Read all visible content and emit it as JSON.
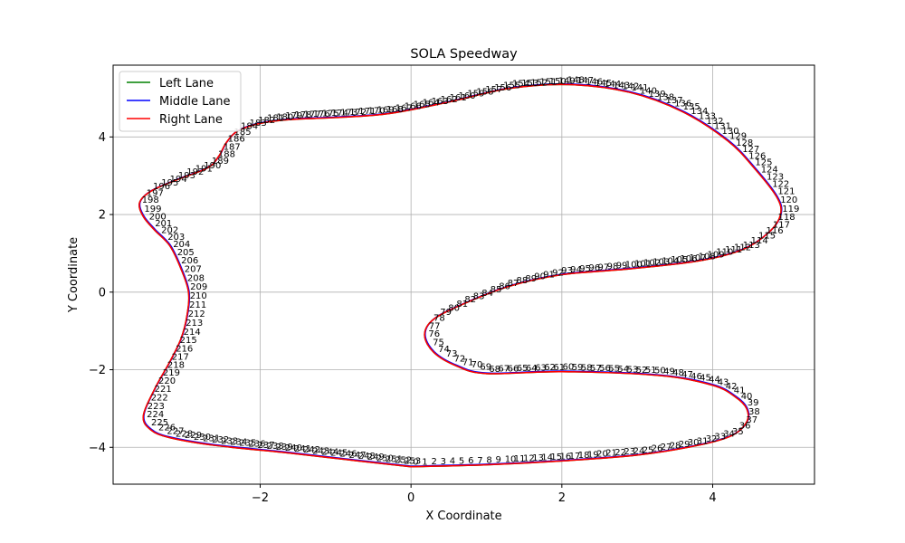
{
  "chart_data": {
    "type": "line",
    "title": "SOLA Speedway",
    "xlabel": "X Coordinate",
    "ylabel": "Y Coordinate",
    "xlim": [
      -3.95,
      5.35
    ],
    "ylim": [
      -4.95,
      5.85
    ],
    "xticks": [
      -2,
      0,
      2,
      4
    ],
    "xtick_labels": [
      "−2",
      "0",
      "2",
      "4"
    ],
    "yticks": [
      -4,
      -2,
      0,
      2,
      4
    ],
    "ytick_labels": [
      "−4",
      "−2",
      "0",
      "2",
      "4"
    ],
    "grid": true,
    "legend": {
      "position": "top-left"
    },
    "colors": {
      "Left Lane": "#008000",
      "Middle Lane": "#0000ff",
      "Right Lane": "#ff0000"
    },
    "series": [
      {
        "name": "Left Lane",
        "x": [
          0.0,
          1.0,
          2.0,
          3.0,
          3.8,
          4.25,
          4.45,
          4.45,
          4.3,
          4.0,
          3.3,
          2.0,
          1.0,
          0.6,
          0.3,
          0.18,
          0.3,
          0.7,
          1.3,
          2.0,
          2.9,
          3.8,
          4.4,
          4.75,
          4.9,
          4.85,
          4.55,
          4.2,
          3.6,
          2.9,
          2.1,
          1.3,
          0.5,
          -0.3,
          -1.0,
          -1.6,
          -2.0,
          -2.3,
          -2.45,
          -2.55,
          -2.7,
          -3.1,
          -3.45,
          -3.6,
          -3.55,
          -3.4,
          -3.2,
          -3.05,
          -2.95,
          -2.97,
          -3.05,
          -3.2,
          -3.4,
          -3.55,
          -3.45,
          -3.2,
          -2.6,
          -1.6,
          -0.7,
          0.0
        ],
        "y": [
          -4.5,
          -4.45,
          -4.35,
          -4.2,
          -3.95,
          -3.7,
          -3.35,
          -3.0,
          -2.7,
          -2.4,
          -2.15,
          -2.05,
          -2.1,
          -1.9,
          -1.55,
          -1.1,
          -0.7,
          -0.3,
          0.15,
          0.45,
          0.6,
          0.8,
          1.1,
          1.55,
          2.0,
          2.45,
          3.2,
          3.9,
          4.65,
          5.15,
          5.35,
          5.25,
          4.9,
          4.6,
          4.5,
          4.45,
          4.35,
          4.15,
          3.85,
          3.5,
          3.2,
          2.9,
          2.6,
          2.3,
          1.95,
          1.6,
          1.2,
          0.6,
          0.0,
          -0.6,
          -1.2,
          -1.8,
          -2.5,
          -3.2,
          -3.55,
          -3.75,
          -3.95,
          -4.15,
          -4.35,
          -4.5
        ]
      },
      {
        "name": "Middle Lane",
        "x": [
          0.0,
          1.0,
          2.0,
          3.0,
          3.8,
          4.25,
          4.45,
          4.45,
          4.3,
          4.0,
          3.3,
          2.0,
          1.0,
          0.6,
          0.3,
          0.18,
          0.3,
          0.7,
          1.3,
          2.0,
          2.9,
          3.8,
          4.4,
          4.75,
          4.9,
          4.85,
          4.55,
          4.2,
          3.6,
          2.9,
          2.1,
          1.3,
          0.5,
          -0.3,
          -1.0,
          -1.6,
          -2.0,
          -2.3,
          -2.45,
          -2.55,
          -2.7,
          -3.1,
          -3.45,
          -3.6,
          -3.55,
          -3.4,
          -3.2,
          -3.05,
          -2.95,
          -2.97,
          -3.05,
          -3.2,
          -3.4,
          -3.55,
          -3.45,
          -3.2,
          -2.6,
          -1.6,
          -0.7,
          0.0
        ],
        "y": [
          -4.5,
          -4.45,
          -4.35,
          -4.2,
          -3.95,
          -3.7,
          -3.35,
          -3.0,
          -2.7,
          -2.4,
          -2.15,
          -2.05,
          -2.1,
          -1.9,
          -1.55,
          -1.1,
          -0.7,
          -0.3,
          0.15,
          0.45,
          0.6,
          0.8,
          1.1,
          1.55,
          2.0,
          2.45,
          3.2,
          3.9,
          4.65,
          5.15,
          5.35,
          5.25,
          4.9,
          4.6,
          4.5,
          4.45,
          4.35,
          4.15,
          3.85,
          3.5,
          3.2,
          2.9,
          2.6,
          2.3,
          1.95,
          1.6,
          1.2,
          0.6,
          0.0,
          -0.6,
          -1.2,
          -1.8,
          -2.5,
          -3.2,
          -3.55,
          -3.75,
          -3.95,
          -4.15,
          -4.35,
          -4.5
        ]
      },
      {
        "name": "Right Lane",
        "x": [
          0.0,
          1.0,
          2.0,
          3.0,
          3.8,
          4.25,
          4.45,
          4.45,
          4.3,
          4.0,
          3.3,
          2.0,
          1.0,
          0.6,
          0.3,
          0.18,
          0.3,
          0.7,
          1.3,
          2.0,
          2.9,
          3.8,
          4.4,
          4.75,
          4.9,
          4.85,
          4.55,
          4.2,
          3.6,
          2.9,
          2.1,
          1.3,
          0.5,
          -0.3,
          -1.0,
          -1.6,
          -2.0,
          -2.3,
          -2.45,
          -2.55,
          -2.7,
          -3.1,
          -3.45,
          -3.6,
          -3.55,
          -3.4,
          -3.2,
          -3.05,
          -2.95,
          -2.97,
          -3.05,
          -3.2,
          -3.4,
          -3.55,
          -3.45,
          -3.2,
          -2.6,
          -1.6,
          -0.7,
          0.0
        ],
        "y": [
          -4.5,
          -4.45,
          -4.35,
          -4.2,
          -3.95,
          -3.7,
          -3.35,
          -3.0,
          -2.7,
          -2.4,
          -2.15,
          -2.05,
          -2.1,
          -1.9,
          -1.55,
          -1.1,
          -0.7,
          -0.3,
          0.15,
          0.45,
          0.6,
          0.8,
          1.1,
          1.55,
          2.0,
          2.45,
          3.2,
          3.9,
          4.65,
          5.15,
          5.35,
          5.25,
          4.9,
          4.6,
          4.5,
          4.45,
          4.35,
          4.15,
          3.85,
          3.5,
          3.2,
          2.9,
          2.6,
          2.3,
          1.95,
          1.6,
          1.2,
          0.6,
          0.0,
          -0.6,
          -1.2,
          -1.8,
          -2.5,
          -3.2,
          -3.55,
          -3.75,
          -3.95,
          -4.15,
          -4.35,
          -4.5
        ]
      }
    ],
    "waypoint_labels": {
      "count": 254,
      "labels": [
        "0",
        "1",
        "2",
        "3",
        "4",
        "5",
        "6",
        "7",
        "8",
        "9",
        "10",
        "11",
        "12",
        "13",
        "14",
        "15",
        "16",
        "17",
        "18",
        "19",
        "20",
        "21",
        "22",
        "23",
        "24",
        "25",
        "26",
        "27",
        "28",
        "29",
        "30",
        "31",
        "32",
        "33",
        "34",
        "35",
        "36",
        "37",
        "38",
        "39",
        "40",
        "41",
        "42",
        "43",
        "44",
        "45",
        "46",
        "47",
        "48",
        "49",
        "50",
        "51",
        "52",
        "53",
        "54",
        "55",
        "56",
        "57",
        "58",
        "59",
        "60",
        "61",
        "62",
        "63",
        "64",
        "65",
        "66",
        "67",
        "68",
        "69",
        "70",
        "71",
        "72",
        "73",
        "74",
        "75",
        "76",
        "77",
        "78",
        "79",
        "80",
        "81",
        "82",
        "83",
        "84",
        "85",
        "86",
        "87",
        "88",
        "89",
        "90",
        "91",
        "92",
        "93",
        "94",
        "95",
        "96",
        "97",
        "98",
        "99",
        "100",
        "101",
        "102",
        "103",
        "104",
        "105",
        "106",
        "107",
        "108",
        "109",
        "110",
        "111",
        "112",
        "113",
        "114",
        "115",
        "116",
        "117",
        "118",
        "119",
        "120",
        "121",
        "122",
        "123",
        "124",
        "125",
        "126",
        "127",
        "128",
        "129",
        "130",
        "131",
        "132",
        "133",
        "134",
        "135",
        "136",
        "137",
        "138",
        "139",
        "140",
        "141",
        "142",
        "143",
        "144",
        "145",
        "146",
        "147",
        "148",
        "149",
        "150",
        "151",
        "152",
        "153",
        "154",
        "155",
        "156",
        "157",
        "158",
        "159",
        "160",
        "161",
        "162",
        "163",
        "164",
        "165",
        "166",
        "167",
        "168",
        "169",
        "170",
        "171",
        "172",
        "173",
        "174",
        "175",
        "176",
        "177",
        "178",
        "179",
        "180",
        "181",
        "182",
        "183",
        "184",
        "185",
        "186",
        "187",
        "188",
        "189",
        "190",
        "191",
        "192",
        "193",
        "194",
        "195",
        "196",
        "197",
        "198",
        "199",
        "200",
        "201",
        "202",
        "203",
        "204",
        "205",
        "206",
        "207",
        "208",
        "209",
        "210",
        "211",
        "212",
        "213",
        "214",
        "215",
        "216",
        "217",
        "218",
        "219",
        "220",
        "221",
        "222",
        "223",
        "224",
        "225",
        "226",
        "227",
        "228",
        "229",
        "230",
        "231",
        "232",
        "233",
        "234",
        "235",
        "236",
        "237",
        "238",
        "239",
        "240",
        "241",
        "242",
        "243",
        "244",
        "245",
        "246",
        "247",
        "248",
        "249",
        "250",
        "251",
        "252",
        "253"
      ]
    }
  }
}
